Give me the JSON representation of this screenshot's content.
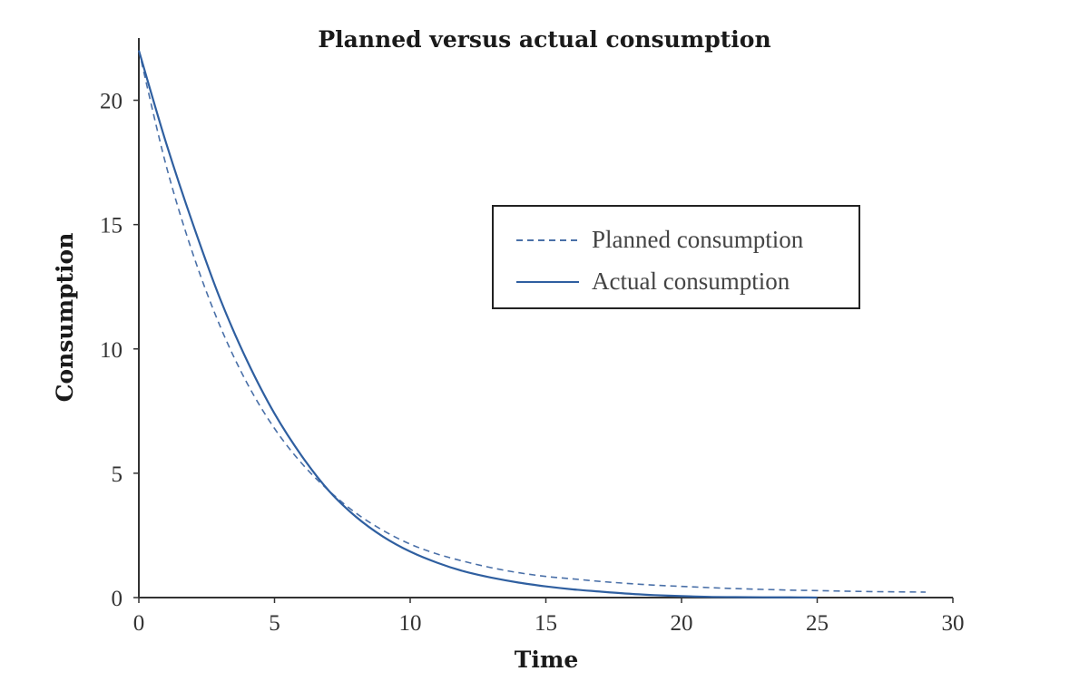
{
  "chart_data": {
    "type": "line",
    "title": "Planned versus actual consumption",
    "xlabel": "Time",
    "ylabel": "Consumption",
    "xlim": [
      0,
      30
    ],
    "ylim": [
      0,
      22.5
    ],
    "xticks": [
      0,
      5,
      10,
      15,
      20,
      25,
      30
    ],
    "yticks": [
      0,
      5,
      10,
      15,
      20
    ],
    "grid": false,
    "legend_position": "upper-right",
    "series": [
      {
        "name": "Planned consumption",
        "style": "dashed",
        "color": "#4a70a8",
        "x": [
          0,
          1,
          2,
          3,
          4,
          5,
          6,
          7,
          8,
          9,
          10,
          11,
          12,
          13,
          14,
          15,
          16,
          17,
          18,
          19,
          20,
          21,
          22,
          23,
          24,
          25,
          26,
          27,
          28,
          29
        ],
        "y": [
          22.0,
          17.4,
          13.8,
          10.9,
          8.6,
          6.8,
          5.4,
          4.3,
          3.4,
          2.7,
          2.15,
          1.75,
          1.45,
          1.2,
          1.0,
          0.85,
          0.75,
          0.65,
          0.57,
          0.5,
          0.45,
          0.4,
          0.36,
          0.33,
          0.3,
          0.28,
          0.26,
          0.24,
          0.23,
          0.22
        ]
      },
      {
        "name": "Actual consumption",
        "style": "solid",
        "color": "#2f5fa0",
        "x": [
          0,
          1,
          2,
          3,
          4,
          5,
          6,
          7,
          8,
          9,
          10,
          11,
          12,
          13,
          14,
          15,
          16,
          17,
          18,
          19,
          20,
          21,
          22,
          23,
          24,
          25
        ],
        "y": [
          22.0,
          18.3,
          15.0,
          12.0,
          9.5,
          7.4,
          5.7,
          4.3,
          3.25,
          2.45,
          1.85,
          1.4,
          1.05,
          0.8,
          0.6,
          0.45,
          0.33,
          0.24,
          0.16,
          0.1,
          0.06,
          0.03,
          0.02,
          0.01,
          0.01,
          0.0
        ]
      }
    ]
  }
}
